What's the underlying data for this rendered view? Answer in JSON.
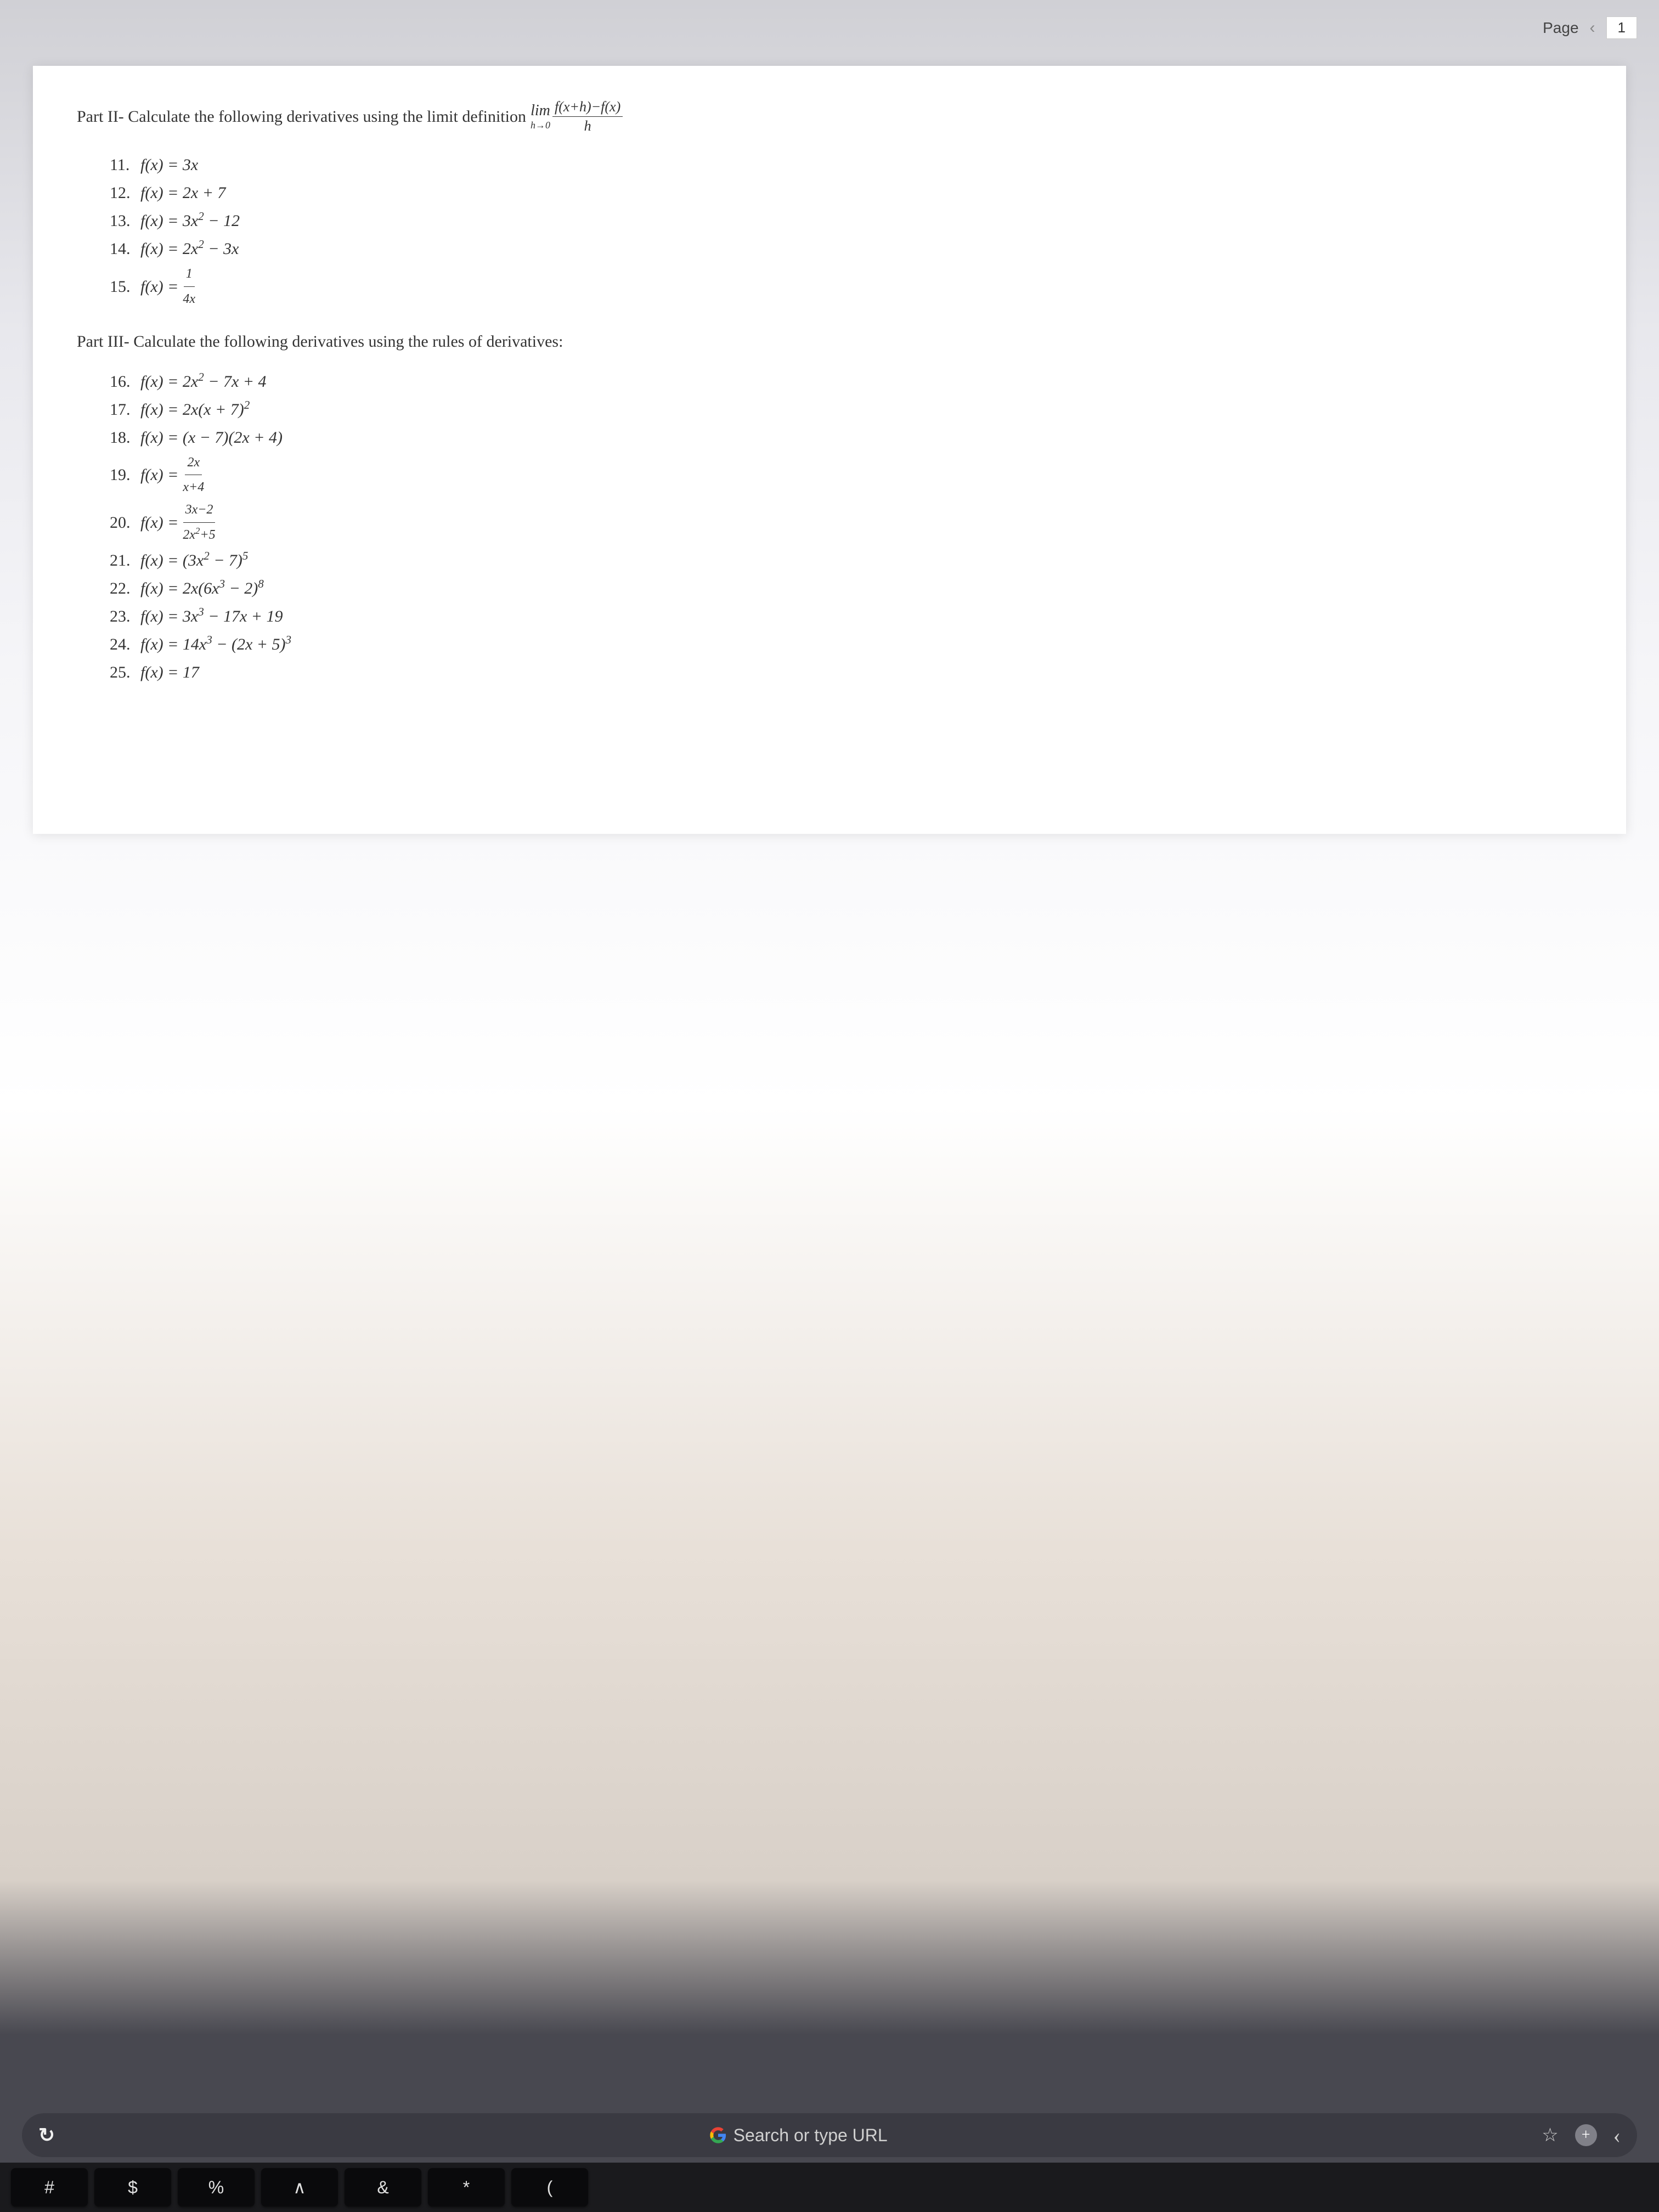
{
  "header": {
    "page_label": "Page",
    "page_number": "1"
  },
  "document": {
    "part2": {
      "heading_prefix": "Part II- Calculate the following derivatives using the limit definition",
      "limit_text": "lim",
      "limit_sub": "h→0",
      "limit_numerator": "f(x+h)−f(x)",
      "limit_denominator": "h",
      "problems": [
        {
          "num": "11.",
          "expr": "f(x) = 3x"
        },
        {
          "num": "12.",
          "expr": "f(x) = 2x + 7"
        },
        {
          "num": "13.",
          "expr_before": "f(x) = 3x",
          "super": "2",
          "expr_after": " − 12"
        },
        {
          "num": "14.",
          "expr_before": "f(x) = 2x",
          "super": "2",
          "expr_after": " − 3x"
        },
        {
          "num": "15.",
          "expr_before": "f(x) = ",
          "frac_num": "1",
          "frac_den": "4x"
        }
      ]
    },
    "part3": {
      "heading": "Part III- Calculate the following derivatives using the rules of derivatives:",
      "problems": [
        {
          "num": "16.",
          "html": "f(x) = 2x<sup>2</sup> − 7x + 4"
        },
        {
          "num": "17.",
          "html": "f(x) = 2x(x + 7)<sup>2</sup>"
        },
        {
          "num": "18.",
          "html": "f(x) = (x − 7)(2x + 4)"
        },
        {
          "num": "19.",
          "expr_before": "f(x) = ",
          "frac_num": "2x",
          "frac_den": "x+4"
        },
        {
          "num": "20.",
          "expr_before": "f(x) = ",
          "frac_num": "3x−2",
          "frac_den_html": "2x<sup>2</sup>+5"
        },
        {
          "num": "21.",
          "html": "f(x) = (3x<sup>2</sup> − 7)<sup>5</sup>"
        },
        {
          "num": "22.",
          "html": "f(x) = 2x(6x<sup>3</sup> − 2)<sup>8</sup>"
        },
        {
          "num": "23.",
          "html": "f(x) = 3x<sup>3</sup> − 17x + 19"
        },
        {
          "num": "24.",
          "html": "f(x) = 14x<sup>3</sup> − (2x + 5)<sup>3</sup>"
        },
        {
          "num": "25.",
          "html": "f(x) = 17"
        }
      ]
    }
  },
  "browser": {
    "search_placeholder": "Search or type URL"
  },
  "keyboard": {
    "keys": [
      "#",
      "$",
      "%",
      "∧",
      "&",
      "*",
      "("
    ]
  },
  "colors": {
    "text": "#333333",
    "page_bg": "#ffffff",
    "browser_bar": "#3a3a42",
    "keyboard_bg": "#1a1a1d",
    "key_bg": "#0a0a0c"
  },
  "fonts": {
    "document_family": "Times New Roman",
    "document_size_pt": 30,
    "ui_family": "-apple-system"
  }
}
